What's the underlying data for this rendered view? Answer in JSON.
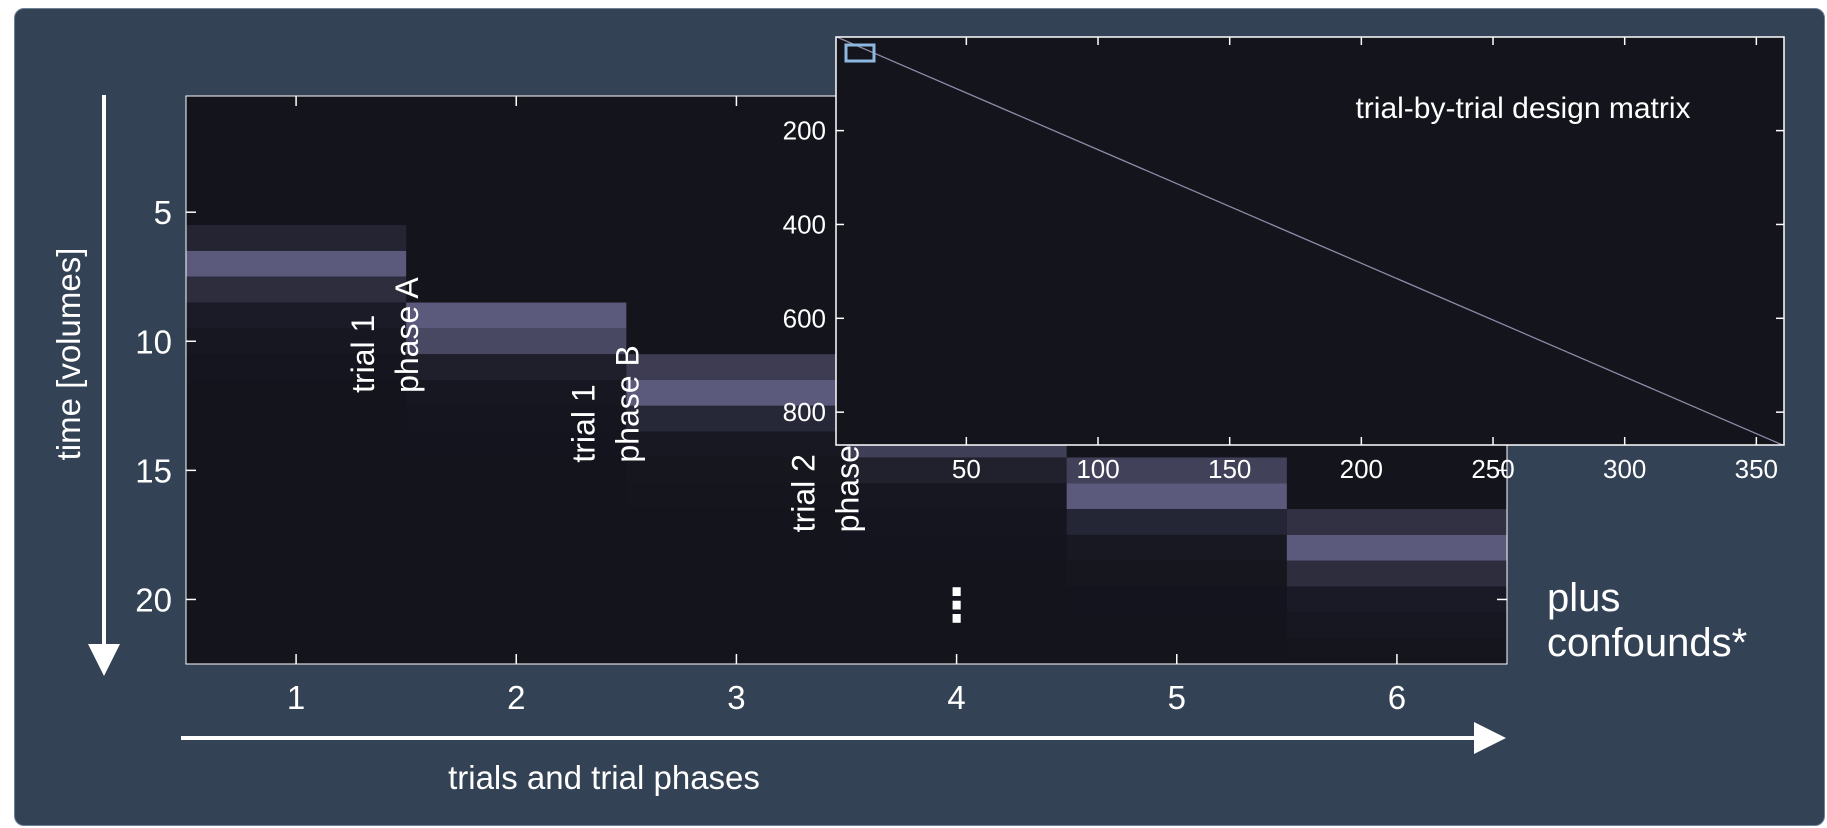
{
  "colors": {
    "panel_bg": "#334255",
    "plot_bg": "#13141c",
    "cell_peak": "#5b5a7c",
    "cell_mid": "#2e2d40",
    "cell_low": "#1e1e29",
    "cell_faint": "#171820",
    "cell_trace": "#15161d",
    "text": "#ffffff",
    "inset_highlight": "#8fb8e0"
  },
  "chart_data": [
    {
      "type": "heatmap",
      "title": "",
      "ylabel": "time [volumes]",
      "xlabel": "trials and trial phases",
      "x_ticks": [
        "1",
        "2",
        "3",
        "4",
        "5",
        "6"
      ],
      "y_ticks": [
        "5",
        "10",
        "15",
        "20"
      ],
      "y_tick_values": [
        5,
        10,
        15,
        20
      ],
      "xlim": [
        0.5,
        6.5
      ],
      "ylim": [
        0.5,
        22.5
      ],
      "columns": [
        {
          "x": 1,
          "onset": 6,
          "weights": [
            0.18,
            0.78,
            0.28,
            0.08,
            0.03,
            0.015
          ]
        },
        {
          "x": 2,
          "onset": 9,
          "weights": [
            0.78,
            0.58,
            0.12,
            0.03,
            0.015,
            0.005
          ]
        },
        {
          "x": 3,
          "onset": 11,
          "weights": [
            0.45,
            0.78,
            0.22,
            0.05,
            0.02,
            0.008
          ]
        },
        {
          "x": 4,
          "onset": 13,
          "weights": [
            0.78,
            0.48,
            0.15,
            0.035,
            0.015,
            0.005
          ]
        },
        {
          "x": 5,
          "onset": 15,
          "weights": [
            0.5,
            0.78,
            0.2,
            0.04,
            0.018,
            0.005
          ]
        },
        {
          "x": 6,
          "onset": 17,
          "weights": [
            0.32,
            0.78,
            0.28,
            0.07,
            0.03,
            0.01
          ]
        }
      ],
      "phase_labels": [
        {
          "x": 1.4,
          "y": 12.0,
          "lines": [
            "trial 1",
            "phase A"
          ]
        },
        {
          "x": 2.4,
          "y": 14.7,
          "lines": [
            "trial 1",
            "phase B"
          ]
        },
        {
          "x": 3.4,
          "y": 17.4,
          "lines": [
            "trial 2",
            "phase A"
          ]
        }
      ],
      "ellipsis_marker": {
        "x": 4,
        "y": 20.3,
        "symbol": "⋮"
      },
      "side_note": [
        "plus",
        "confounds*"
      ]
    },
    {
      "type": "heatmap",
      "title": "trial-by-trial design matrix",
      "xlabel": "",
      "ylabel": "",
      "x_ticks": [
        "50",
        "100",
        "150",
        "200",
        "250",
        "300",
        "350"
      ],
      "x_tick_values": [
        50,
        100,
        150,
        200,
        250,
        300,
        350
      ],
      "y_ticks": [
        "200",
        "400",
        "600",
        "800"
      ],
      "y_tick_values": [
        200,
        400,
        600,
        800
      ],
      "xlim": [
        0.5,
        360.5
      ],
      "ylim": [
        0.5,
        870
      ],
      "diagonal": {
        "from": [
          1,
          1
        ],
        "to": [
          360,
          870
        ]
      },
      "zoom_region": {
        "x": [
          0.5,
          6.5
        ],
        "y": [
          0.5,
          22.5
        ]
      }
    }
  ]
}
